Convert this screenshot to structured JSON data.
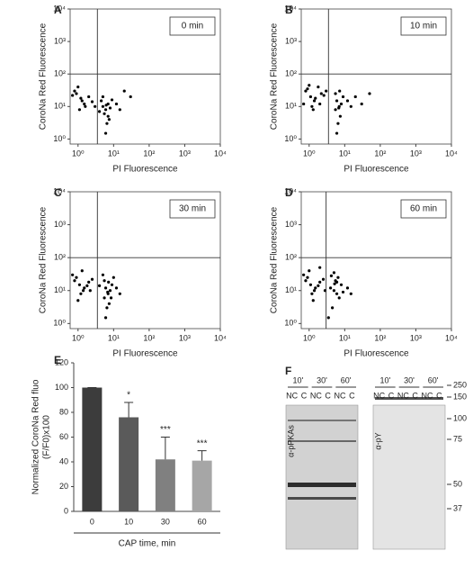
{
  "chart_data": [
    {
      "type": "scatter",
      "panel": "A",
      "annotation": "0 min",
      "xlabel": "PI Fluorescence",
      "ylabel": "CoroNa Red Fluorescence",
      "log_x": true,
      "log_y": true,
      "xlim": [
        0.6,
        10000
      ],
      "ylim": [
        0.7,
        10000
      ],
      "xticks": [
        {
          "value": 1,
          "label": "10⁰"
        },
        {
          "value": 10,
          "label": "10¹"
        },
        {
          "value": 100,
          "label": "10²"
        },
        {
          "value": 1000,
          "label": "10³"
        },
        {
          "value": 10000,
          "label": "10⁴"
        }
      ],
      "yticks": [
        {
          "value": 1,
          "label": "10⁰"
        },
        {
          "value": 10,
          "label": "10¹"
        },
        {
          "value": 100,
          "label": "10²"
        },
        {
          "value": 1000,
          "label": "10³"
        },
        {
          "value": 10000,
          "label": "10⁴"
        }
      ],
      "gate_x": 3.5,
      "gate_y": 100,
      "color": "#000000",
      "x": [
        0.9,
        1.2,
        1.5,
        0.8,
        1.1,
        2,
        1.3,
        0.7,
        1.6,
        2.5,
        5,
        6,
        7,
        5.5,
        6.5,
        8,
        4.5,
        7.5,
        6,
        5,
        12,
        15,
        3,
        9,
        20,
        30,
        1,
        4,
        6.2,
        7
      ],
      "y": [
        25,
        18,
        12,
        30,
        8,
        20,
        15,
        22,
        10,
        14,
        10,
        8,
        12,
        6,
        3,
        9,
        15,
        4,
        1.5,
        20,
        12,
        8,
        10,
        16,
        30,
        20,
        40,
        7,
        11,
        5
      ]
    },
    {
      "type": "scatter",
      "panel": "B",
      "annotation": "10 min",
      "xlabel": "PI Fluorescence",
      "ylabel": "CoroNa Red Fluorescence",
      "log_x": true,
      "log_y": true,
      "xlim": [
        0.6,
        10000
      ],
      "ylim": [
        0.7,
        10000
      ],
      "xticks": [
        {
          "value": 1,
          "label": "10⁰"
        },
        {
          "value": 10,
          "label": "10¹"
        },
        {
          "value": 100,
          "label": "10²"
        },
        {
          "value": 1000,
          "label": "10³"
        },
        {
          "value": 10000,
          "label": "10⁴"
        }
      ],
      "yticks": [
        {
          "value": 1,
          "label": "10⁰"
        },
        {
          "value": 10,
          "label": "10¹"
        },
        {
          "value": 100,
          "label": "10²"
        },
        {
          "value": 1000,
          "label": "10³"
        },
        {
          "value": 10000,
          "label": "10⁴"
        }
      ],
      "gate_x": 3.5,
      "gate_y": 100,
      "color": "#000000",
      "x": [
        0.8,
        1.1,
        1.4,
        0.9,
        1.2,
        2.2,
        1.5,
        0.7,
        1.8,
        2.6,
        3,
        1,
        6,
        7,
        5.5,
        6.5,
        8,
        9,
        7.5,
        6,
        5.5,
        12,
        15,
        20,
        30,
        50,
        1.3,
        2,
        6.8,
        7.2
      ],
      "y": [
        30,
        20,
        15,
        35,
        10,
        25,
        18,
        12,
        40,
        22,
        30,
        45,
        15,
        10,
        8,
        3,
        12,
        20,
        5,
        1.5,
        25,
        15,
        10,
        20,
        12,
        25,
        8,
        12,
        9,
        30
      ]
    },
    {
      "type": "scatter",
      "panel": "C",
      "annotation": "30 min",
      "xlabel": "PI Fluorescence",
      "ylabel": "CoroNa Red Fluorescence",
      "log_x": true,
      "log_y": true,
      "xlim": [
        0.6,
        10000
      ],
      "ylim": [
        0.7,
        10000
      ],
      "xticks": [
        {
          "value": 1,
          "label": "10⁰"
        },
        {
          "value": 10,
          "label": "10¹"
        },
        {
          "value": 100,
          "label": "10²"
        },
        {
          "value": 1000,
          "label": "10³"
        },
        {
          "value": 10000,
          "label": "10⁴"
        }
      ],
      "yticks": [
        {
          "value": 1,
          "label": "10⁰"
        },
        {
          "value": 10,
          "label": "10¹"
        },
        {
          "value": 100,
          "label": "10²"
        },
        {
          "value": 1000,
          "label": "10³"
        },
        {
          "value": 10000,
          "label": "10⁴"
        }
      ],
      "gate_x": 3.5,
      "gate_y": 100,
      "color": "#000000",
      "x": [
        0.8,
        1.1,
        1.4,
        0.9,
        1.2,
        2,
        1.5,
        0.7,
        1.8,
        2.5,
        1,
        6,
        7,
        5.5,
        6.5,
        8,
        9,
        7.5,
        6,
        5.5,
        12,
        15,
        10,
        4,
        1.3,
        2.2,
        6.8,
        7.2,
        5,
        8.5
      ],
      "y": [
        20,
        15,
        10,
        25,
        8,
        18,
        12,
        30,
        14,
        22,
        5,
        12,
        8,
        6,
        3,
        10,
        15,
        4,
        1.5,
        20,
        12,
        8,
        25,
        14,
        40,
        10,
        9,
        18,
        30,
        6
      ]
    },
    {
      "type": "scatter",
      "panel": "D",
      "annotation": "60 min",
      "xlabel": "PI Fluorescence",
      "ylabel": "CoroNa Red Fluorescence",
      "log_x": true,
      "log_y": true,
      "xlim": [
        0.6,
        10000
      ],
      "ylim": [
        0.7,
        10000
      ],
      "xticks": [
        {
          "value": 1,
          "label": "10⁰"
        },
        {
          "value": 10,
          "label": "10¹"
        },
        {
          "value": 100,
          "label": "10²"
        },
        {
          "value": 1000,
          "label": "10³"
        },
        {
          "value": 10000,
          "label": "10⁴"
        }
      ],
      "yticks": [
        {
          "value": 1,
          "label": "10⁰"
        },
        {
          "value": 10,
          "label": "10¹"
        },
        {
          "value": 100,
          "label": "10²"
        },
        {
          "value": 1000,
          "label": "10³"
        },
        {
          "value": 10000,
          "label": "10⁴"
        }
      ],
      "gate_x": 3,
      "gate_y": 100,
      "color": "#000000",
      "x": [
        0.8,
        1.1,
        1.4,
        0.9,
        1.2,
        2,
        1.5,
        0.7,
        1.8,
        2.5,
        1,
        4,
        5,
        6,
        7,
        5.5,
        6.5,
        8,
        4.5,
        3.5,
        5,
        12,
        15,
        2,
        1.3,
        2.8,
        6,
        4.2,
        5.2,
        9
      ],
      "y": [
        20,
        15,
        10,
        25,
        8,
        18,
        12,
        30,
        14,
        22,
        40,
        12,
        10,
        8,
        6,
        20,
        25,
        15,
        3,
        1.5,
        35,
        12,
        8,
        50,
        5,
        10,
        18,
        28,
        16,
        9
      ]
    },
    {
      "type": "bar",
      "panel": "E",
      "ylabel": [
        "Normalized CoroNa Red fluo",
        "(F/F0)x100"
      ],
      "xlabel": "CAP time, min",
      "categories": [
        "0",
        "10",
        "30",
        "60"
      ],
      "values": [
        100,
        76,
        42,
        41
      ],
      "errors": [
        0,
        12,
        18,
        8
      ],
      "significance": [
        null,
        "*",
        "***",
        "***"
      ],
      "colors": [
        "#3c3c3c",
        "#5a5a5a",
        "#808080",
        "#a6a6a6"
      ],
      "ylim": [
        0,
        120
      ],
      "yticks": [
        0,
        20,
        40,
        60,
        80,
        100,
        120
      ]
    }
  ],
  "blots": {
    "panel": "F",
    "markers": [
      250,
      150,
      100,
      75,
      50,
      37
    ],
    "panels": [
      {
        "antibody": "α-pPKAs",
        "timepoints": [
          "10'",
          "30'",
          "60'"
        ],
        "lanes": [
          "NC",
          "C",
          "NC",
          "C",
          "NC",
          "C"
        ]
      },
      {
        "antibody": "α-pY",
        "timepoints": [
          "10'",
          "30'",
          "60'"
        ],
        "lanes": [
          "NC",
          "C",
          "NC",
          "C",
          "NC",
          "C"
        ]
      }
    ]
  }
}
